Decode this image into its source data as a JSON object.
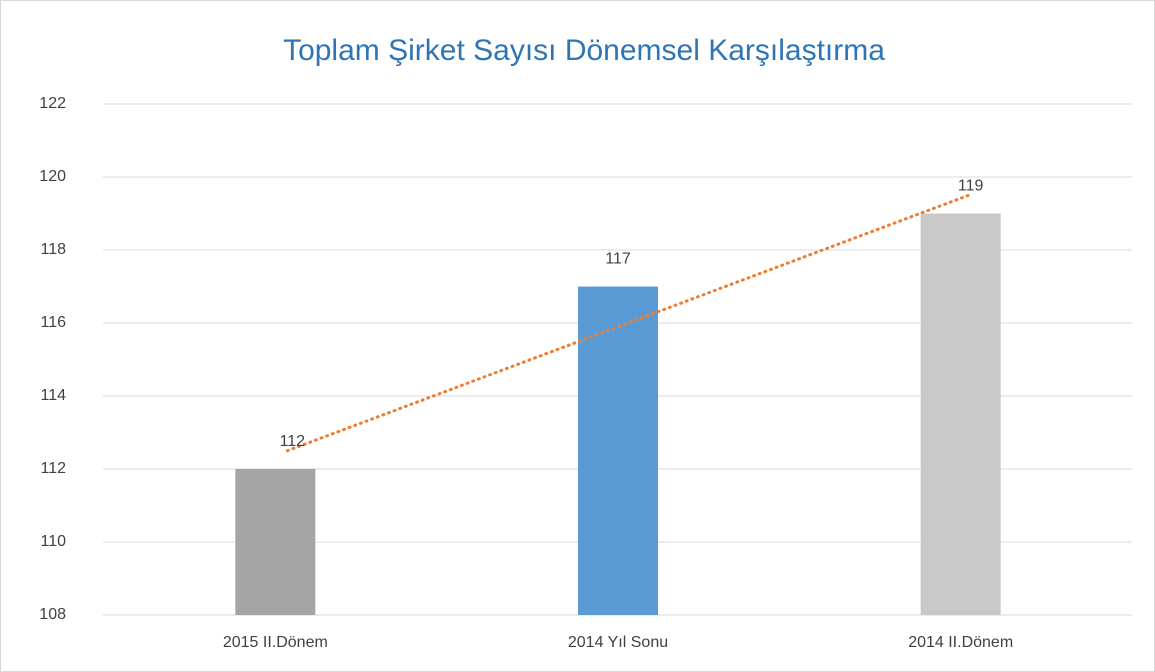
{
  "chart_data": {
    "type": "bar",
    "title": "Toplam Şirket Sayısı Dönemsel Karşılaştırma",
    "categories": [
      "2015 II.Dönem",
      "2014 Yıl Sonu",
      "2014 II.Dönem"
    ],
    "values": [
      112,
      117,
      119
    ],
    "colors": [
      "#a5a5a5",
      "#5b9bd5",
      "#c9c9c9"
    ],
    "ylim": [
      108,
      122
    ],
    "yticks": [
      108,
      110,
      112,
      114,
      116,
      118,
      120,
      122
    ],
    "grid": true,
    "data_labels": true,
    "trendline": {
      "type": "linear",
      "color": "#ed7d31",
      "style": "dotted"
    }
  }
}
